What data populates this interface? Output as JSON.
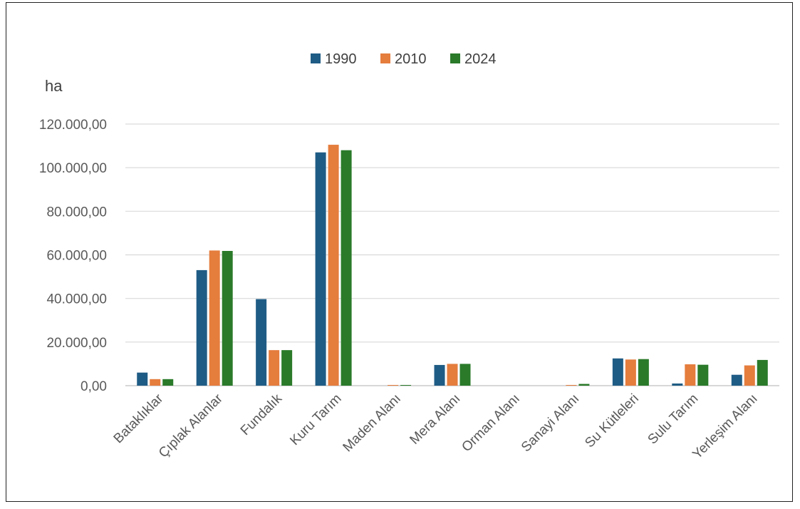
{
  "chart_data": {
    "type": "bar",
    "ylabel": "ha",
    "ylim": [
      0,
      120000
    ],
    "yticks": [
      0,
      20000,
      40000,
      60000,
      80000,
      100000,
      120000
    ],
    "ytick_labels": [
      "0,00",
      "20.000,00",
      "40.000,00",
      "60.000,00",
      "80.000,00",
      "100.000,00",
      "120.000,00"
    ],
    "grid": true,
    "legend_position": "top-center",
    "categories": [
      "Bataklıklar",
      "Çıplak Alanlar",
      "Fundalık",
      "Kuru Tarım",
      "Maden Alanı",
      "Mera Alanı",
      "Orman Alanı",
      "Sanayi Alanı",
      "Su Kütleleri",
      "Sulu Tarım",
      "Yerleşim Alanı"
    ],
    "series": [
      {
        "name": "1990",
        "color": "#1f5c85",
        "values": [
          6000,
          53000,
          39700,
          107000,
          0,
          9500,
          0,
          0,
          12500,
          1000,
          5000
        ]
      },
      {
        "name": "2010",
        "color": "#e57d3d",
        "values": [
          3000,
          62000,
          16300,
          110500,
          300,
          10000,
          0,
          300,
          12000,
          9800,
          9300
        ]
      },
      {
        "name": "2024",
        "color": "#2a7a2a",
        "values": [
          3000,
          61800,
          16300,
          108000,
          300,
          10000,
          0,
          800,
          12200,
          9600,
          11800
        ]
      }
    ]
  }
}
